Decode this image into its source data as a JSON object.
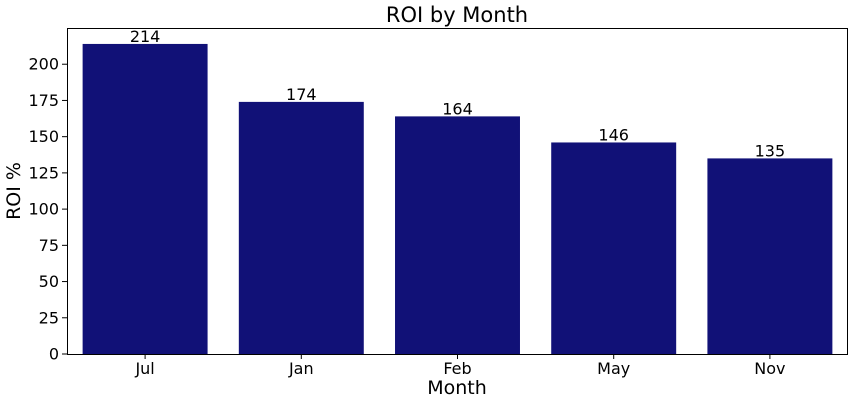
{
  "chart_data": {
    "type": "bar",
    "title": "ROI by Month",
    "xlabel": "Month",
    "ylabel": "ROI %",
    "categories": [
      "Jul",
      "Jan",
      "Feb",
      "May",
      "Nov"
    ],
    "values": [
      214,
      174,
      164,
      146,
      135
    ],
    "data_labels": [
      "214",
      "174",
      "164",
      "146",
      "135"
    ],
    "ylim": [
      0,
      225
    ],
    "yticks": [
      0,
      25,
      50,
      75,
      100,
      125,
      150,
      175,
      200
    ],
    "ytick_labels": [
      "0",
      "25",
      "50",
      "75",
      "100",
      "125",
      "150",
      "175",
      "200"
    ],
    "bar_color": "#111177",
    "grid": false,
    "legend": "none"
  }
}
